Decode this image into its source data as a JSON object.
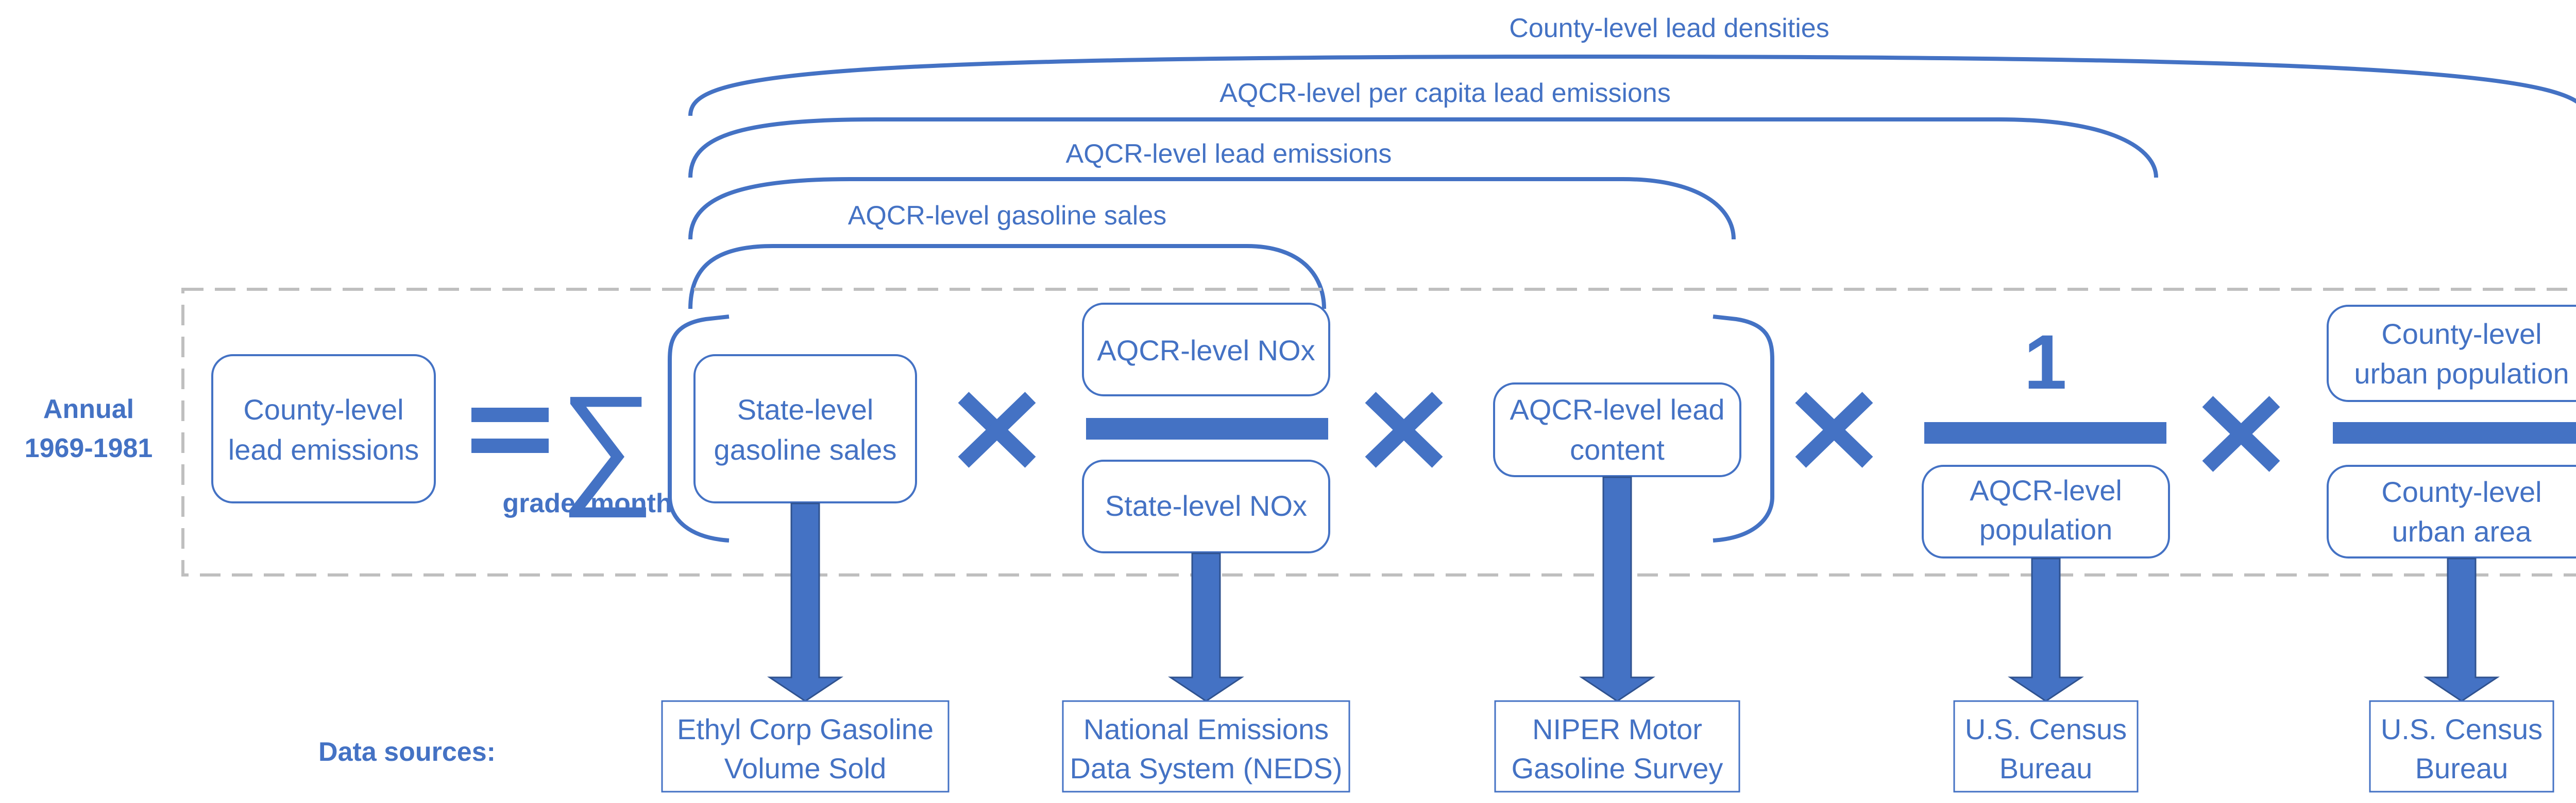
{
  "braces": {
    "county_density": "County-level lead densities",
    "aqcr_per_capita": "AQCR-level per capita lead emissions",
    "aqcr_emissions": "AQCR-level lead emissions",
    "aqcr_gasoline": "AQCR-level gasoline sales"
  },
  "period": {
    "line1": "Annual",
    "line2": "1969-1981"
  },
  "lhs": {
    "line1": "County-level",
    "line2": "lead emissions"
  },
  "operators": {
    "sum_subscript": "grade, month",
    "numerator_one": "1"
  },
  "terms": {
    "state_gasoline": {
      "line1": "State-level",
      "line2": "gasoline sales"
    },
    "aqcr_nox": "AQCR-level NOx",
    "state_nox": "State-level NOx",
    "aqcr_lead_content": {
      "line1": "AQCR-level lead",
      "line2": "content"
    },
    "aqcr_population": {
      "line1": "AQCR-level",
      "line2": "population"
    },
    "county_urban_pop": {
      "line1": "County-level",
      "line2": "urban population"
    },
    "county_urban_area": {
      "line1": "County-level",
      "line2": "urban area"
    }
  },
  "data_sources": {
    "label": "Data sources:",
    "ethyl": {
      "line1": "Ethyl Corp Gasoline",
      "line2": "Volume Sold"
    },
    "neds": {
      "line1": "National Emissions",
      "line2": "Data System (NEDS)"
    },
    "niper": {
      "line1": "NIPER Motor",
      "line2": "Gasoline Survey"
    },
    "census1": {
      "line1": "U.S. Census",
      "line2": "Bureau"
    },
    "census2": {
      "line1": "U.S. Census",
      "line2": "Bureau"
    }
  }
}
